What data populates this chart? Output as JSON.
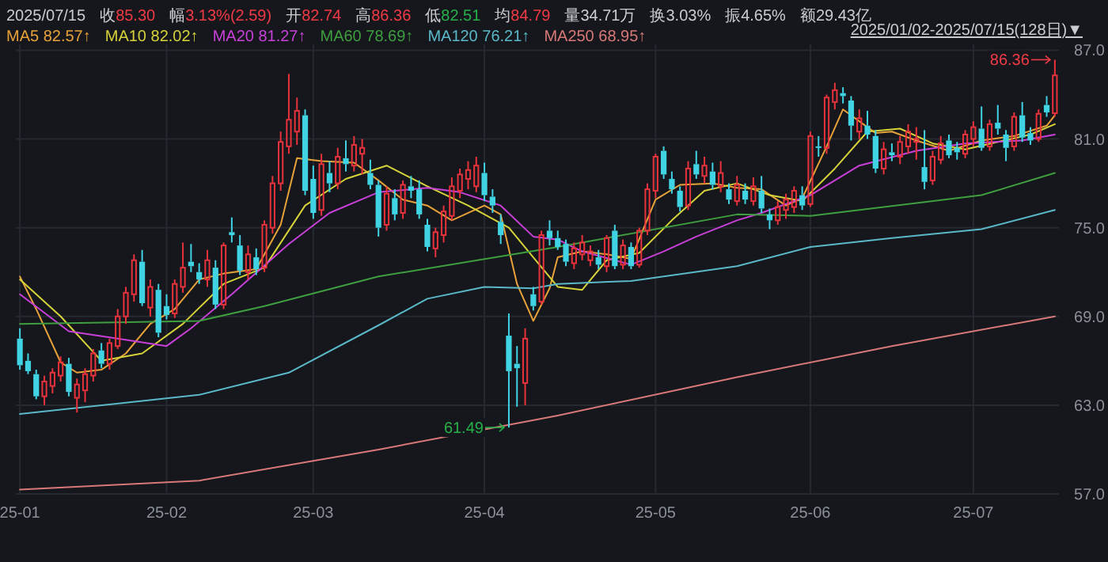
{
  "chart_data": {
    "type": "candlestick",
    "subtitle": "2025/01/02-2025/07/15(128日)▼",
    "categories": [
      "25-01",
      null,
      null,
      null,
      null,
      null,
      null,
      null,
      null,
      null,
      null,
      null,
      null,
      null,
      null,
      null,
      null,
      null,
      "25-02",
      null,
      null,
      null,
      null,
      null,
      null,
      null,
      null,
      null,
      null,
      null,
      null,
      null,
      null,
      null,
      null,
      null,
      "25-03",
      null,
      null,
      null,
      null,
      null,
      null,
      null,
      null,
      null,
      null,
      null,
      null,
      null,
      null,
      null,
      null,
      null,
      null,
      null,
      null,
      "25-04",
      null,
      null,
      null,
      null,
      null,
      null,
      null,
      null,
      null,
      null,
      null,
      null,
      null,
      null,
      null,
      null,
      null,
      null,
      null,
      null,
      "25-05",
      null,
      null,
      null,
      null,
      null,
      null,
      null,
      null,
      null,
      null,
      null,
      null,
      null,
      null,
      null,
      null,
      null,
      null,
      "25-06",
      null,
      null,
      null,
      null,
      null,
      null,
      null,
      null,
      null,
      null,
      null,
      null,
      null,
      null,
      null,
      null,
      null,
      null,
      null,
      "25-07",
      null,
      null,
      null,
      null,
      null,
      null,
      null,
      null,
      null,
      null
    ],
    "ohlc": [
      [
        67.5,
        68.2,
        65.4,
        65.7
      ],
      [
        66.0,
        66.5,
        65.1,
        65.3
      ],
      [
        65.1,
        65.4,
        63.4,
        63.6
      ],
      [
        63.6,
        65.0,
        63.0,
        64.6
      ],
      [
        64.3,
        65.5,
        63.8,
        65.2
      ],
      [
        65.0,
        66.3,
        64.6,
        65.9
      ],
      [
        65.8,
        66.2,
        63.6,
        63.9
      ],
      [
        63.5,
        64.8,
        62.5,
        64.4
      ],
      [
        64.0,
        65.5,
        63.2,
        65.1
      ],
      [
        65.0,
        66.8,
        64.6,
        66.5
      ],
      [
        66.7,
        67.2,
        65.5,
        65.8
      ],
      [
        65.8,
        67.5,
        65.4,
        67.2
      ],
      [
        67.0,
        69.5,
        66.8,
        69.0
      ],
      [
        69.0,
        71.0,
        68.5,
        70.6
      ],
      [
        70.5,
        73.2,
        70.0,
        72.8
      ],
      [
        72.7,
        73.5,
        69.7,
        69.9
      ],
      [
        69.6,
        71.5,
        69.0,
        71.0
      ],
      [
        70.8,
        71.2,
        67.6,
        67.9
      ],
      [
        69.7,
        70.5,
        68.8,
        69.1
      ],
      [
        69.2,
        71.5,
        68.9,
        71.2
      ],
      [
        71.0,
        74.0,
        70.6,
        72.3
      ],
      [
        72.7,
        73.9,
        72.0,
        72.4
      ],
      [
        72.0,
        72.6,
        71.2,
        71.5
      ],
      [
        71.5,
        73.5,
        71.0,
        72.8
      ],
      [
        72.3,
        72.8,
        69.5,
        69.8
      ],
      [
        69.8,
        74.0,
        69.5,
        73.8
      ],
      [
        74.7,
        75.7,
        74.0,
        74.5
      ],
      [
        73.8,
        74.5,
        71.8,
        72.1
      ],
      [
        72.0,
        73.8,
        71.5,
        73.2
      ],
      [
        73.0,
        73.6,
        71.8,
        72.2
      ],
      [
        72.3,
        75.5,
        72.0,
        75.2
      ],
      [
        75.0,
        78.5,
        74.6,
        78.0
      ],
      [
        78.0,
        81.5,
        77.5,
        80.8
      ],
      [
        80.5,
        85.4,
        80.0,
        82.3
      ],
      [
        81.5,
        83.8,
        80.6,
        82.9
      ],
      [
        82.6,
        83.0,
        77.2,
        77.5
      ],
      [
        78.3,
        79.2,
        75.6,
        76.0
      ],
      [
        76.2,
        80.0,
        75.8,
        79.3
      ],
      [
        78.7,
        79.5,
        77.4,
        78.0
      ],
      [
        78.0,
        80.4,
        77.6,
        79.8
      ],
      [
        79.7,
        80.9,
        78.8,
        79.3
      ],
      [
        79.2,
        81.2,
        78.8,
        80.6
      ],
      [
        80.0,
        81.0,
        78.6,
        80.4
      ],
      [
        78.7,
        79.6,
        77.6,
        77.9
      ],
      [
        77.9,
        78.2,
        74.4,
        75.0
      ],
      [
        75.2,
        77.8,
        74.8,
        77.3
      ],
      [
        77.0,
        77.6,
        75.5,
        75.9
      ],
      [
        76.0,
        78.2,
        75.6,
        77.9
      ],
      [
        77.8,
        78.5,
        77.0,
        77.5
      ],
      [
        77.6,
        78.2,
        75.6,
        75.9
      ],
      [
        75.2,
        75.6,
        73.4,
        73.7
      ],
      [
        73.6,
        75.0,
        73.0,
        74.7
      ],
      [
        74.5,
        76.5,
        74.0,
        76.1
      ],
      [
        75.8,
        78.4,
        75.5,
        77.8
      ],
      [
        77.5,
        79.0,
        77.0,
        78.6
      ],
      [
        78.3,
        79.5,
        77.6,
        78.9
      ],
      [
        77.8,
        79.8,
        77.4,
        79.2
      ],
      [
        78.7,
        79.4,
        76.8,
        77.2
      ],
      [
        77.1,
        77.6,
        76.0,
        76.5
      ],
      [
        75.4,
        75.9,
        73.9,
        74.5
      ],
      [
        67.7,
        69.2,
        61.49,
        65.3
      ],
      [
        65.8,
        67.0,
        62.9,
        65.5
      ],
      [
        64.5,
        68.2,
        63.0,
        67.5
      ],
      [
        70.5,
        71.0,
        69.4,
        69.7
      ],
      [
        70.0,
        74.8,
        69.8,
        74.5
      ],
      [
        74.8,
        75.5,
        73.8,
        74.3
      ],
      [
        74.3,
        74.8,
        73.5,
        73.7
      ],
      [
        73.9,
        74.2,
        72.4,
        72.7
      ],
      [
        72.6,
        74.0,
        72.2,
        73.6
      ],
      [
        73.2,
        74.5,
        72.8,
        74.0
      ],
      [
        72.8,
        73.8,
        72.4,
        73.4
      ],
      [
        73.0,
        73.5,
        72.2,
        72.5
      ],
      [
        72.4,
        74.5,
        72.0,
        74.3
      ],
      [
        74.8,
        75.2,
        72.2,
        72.4
      ],
      [
        72.5,
        74.2,
        72.2,
        73.8
      ],
      [
        73.7,
        74.0,
        72.2,
        72.4
      ],
      [
        72.5,
        75.0,
        72.3,
        74.8
      ],
      [
        74.8,
        78.0,
        74.5,
        77.6
      ],
      [
        77.5,
        80.0,
        77.0,
        79.8
      ],
      [
        80.2,
        80.5,
        78.3,
        78.6
      ],
      [
        78.3,
        78.8,
        77.3,
        77.6
      ],
      [
        77.5,
        77.8,
        76.1,
        76.4
      ],
      [
        76.5,
        79.5,
        76.2,
        79.0
      ],
      [
        79.3,
        80.2,
        78.3,
        78.6
      ],
      [
        78.5,
        79.8,
        78.0,
        79.2
      ],
      [
        78.8,
        79.4,
        77.6,
        77.9
      ],
      [
        77.8,
        79.5,
        77.4,
        78.7
      ],
      [
        77.6,
        78.0,
        76.6,
        76.9
      ],
      [
        76.8,
        78.5,
        76.5,
        77.9
      ],
      [
        77.5,
        78.0,
        76.6,
        76.9
      ],
      [
        76.8,
        78.4,
        76.5,
        77.8
      ],
      [
        77.5,
        78.5,
        76.0,
        76.3
      ],
      [
        75.9,
        76.3,
        74.9,
        75.5
      ],
      [
        75.5,
        76.8,
        75.2,
        76.4
      ],
      [
        76.2,
        77.3,
        75.6,
        76.9
      ],
      [
        76.4,
        77.8,
        76.0,
        77.5
      ],
      [
        77.2,
        77.8,
        76.2,
        76.5
      ],
      [
        76.6,
        81.5,
        76.4,
        81.2
      ],
      [
        80.5,
        81.2,
        79.8,
        80.4
      ],
      [
        80.4,
        84.0,
        80.0,
        83.8
      ],
      [
        83.5,
        84.8,
        83.0,
        84.3
      ],
      [
        84.1,
        84.5,
        83.4,
        83.9
      ],
      [
        83.6,
        83.9,
        80.9,
        81.9
      ],
      [
        81.5,
        83.0,
        81.0,
        82.4
      ],
      [
        81.9,
        82.9,
        81.0,
        81.3
      ],
      [
        81.2,
        81.6,
        78.7,
        79.0
      ],
      [
        79.0,
        80.8,
        78.6,
        80.3
      ],
      [
        80.1,
        80.7,
        79.5,
        79.9
      ],
      [
        79.8,
        81.2,
        79.3,
        80.8
      ],
      [
        80.5,
        82.0,
        80.0,
        81.5
      ],
      [
        80.8,
        81.8,
        79.6,
        81.0
      ],
      [
        79.1,
        81.6,
        77.6,
        78.1
      ],
      [
        78.2,
        80.2,
        77.9,
        79.8
      ],
      [
        79.6,
        81.2,
        79.3,
        80.7
      ],
      [
        80.9,
        81.3,
        79.7,
        79.9
      ],
      [
        80.4,
        80.8,
        79.6,
        80.1
      ],
      [
        80.0,
        81.6,
        79.7,
        81.3
      ],
      [
        81.0,
        82.2,
        80.5,
        81.8
      ],
      [
        81.7,
        83.2,
        80.2,
        80.4
      ],
      [
        80.5,
        82.3,
        80.2,
        82.0
      ],
      [
        82.1,
        83.3,
        81.3,
        81.7
      ],
      [
        81.3,
        81.6,
        79.5,
        80.4
      ],
      [
        80.5,
        82.8,
        80.2,
        82.5
      ],
      [
        82.6,
        83.5,
        80.8,
        81.1
      ],
      [
        81.4,
        81.8,
        80.6,
        80.9
      ],
      [
        81.0,
        83.0,
        80.8,
        82.7
      ],
      [
        83.3,
        83.9,
        82.5,
        82.8
      ],
      [
        82.74,
        86.36,
        82.51,
        85.3
      ]
    ],
    "series": [
      {
        "type": "line",
        "name": "MA5",
        "color": "#e8a23a",
        "values": [
          71.7,
          null,
          69.5,
          null,
          null,
          65.9,
          null,
          65.2,
          null,
          null,
          65.4,
          null,
          null,
          66.5,
          null,
          null,
          68.5,
          null,
          null,
          69.5,
          null,
          null,
          71.5,
          null,
          null,
          71.9,
          null,
          null,
          null,
          72.2,
          null,
          null,
          75.2,
          null,
          79.7,
          null,
          null,
          79.5,
          null,
          null,
          null,
          79.4,
          null,
          null,
          78.2,
          null,
          null,
          76.9,
          null,
          null,
          76.5,
          null,
          null,
          75.5,
          null,
          null,
          null,
          76.5,
          null,
          75.9,
          null,
          71.2,
          null,
          68.7,
          null,
          70.9,
          73.0,
          null,
          null,
          73.4,
          null,
          null,
          73.2,
          null,
          null,
          72.9,
          null,
          null,
          76.9,
          null,
          null,
          77.9,
          null,
          null,
          null,
          78.0,
          null,
          null,
          77.7,
          null,
          null,
          77.6,
          null,
          null,
          76.5,
          null,
          77.0,
          null,
          null,
          80.5,
          null,
          83.0,
          null,
          null,
          null,
          81.4,
          null,
          81.5,
          null,
          null,
          80.9,
          null,
          null,
          null,
          80.2,
          null,
          null,
          null,
          80.9,
          null,
          null,
          null,
          81.2,
          null,
          null,
          null,
          81.9,
          82.6
        ]
      },
      {
        "type": "line",
        "name": "MA10",
        "color": "#d6d23a",
        "values": [
          71.5,
          null,
          null,
          null,
          null,
          69.0,
          null,
          null,
          null,
          null,
          66.0,
          null,
          null,
          null,
          null,
          66.5,
          null,
          null,
          null,
          null,
          68.5,
          null,
          null,
          null,
          null,
          71.2,
          null,
          null,
          null,
          null,
          72.3,
          null,
          null,
          null,
          null,
          76.5,
          null,
          null,
          null,
          null,
          78.3,
          null,
          null,
          null,
          null,
          79.2,
          null,
          null,
          null,
          null,
          77.8,
          null,
          null,
          null,
          null,
          76.5,
          null,
          null,
          null,
          null,
          75.0,
          null,
          null,
          73.0,
          null,
          null,
          71.0,
          null,
          null,
          70.8,
          null,
          null,
          72.8,
          null,
          null,
          null,
          73.3,
          null,
          null,
          null,
          75.5,
          null,
          null,
          null,
          77.5,
          null,
          null,
          null,
          78.0,
          null,
          null,
          null,
          77.2,
          null,
          null,
          null,
          76.8,
          null,
          null,
          null,
          79.0,
          null,
          null,
          null,
          81.5,
          null,
          null,
          null,
          81.7,
          null,
          null,
          null,
          80.7,
          null,
          null,
          null,
          80.3,
          null,
          null,
          null,
          80.8,
          null,
          null,
          null,
          81.3,
          null,
          null,
          82.0
        ]
      },
      {
        "type": "line",
        "name": "MA20",
        "color": "#c840d8",
        "values": [
          70.5,
          null,
          null,
          null,
          null,
          null,
          68.0,
          null,
          null,
          null,
          null,
          null,
          67.5,
          null,
          null,
          null,
          null,
          null,
          67.0,
          null,
          null,
          68.2,
          null,
          null,
          null,
          null,
          70.5,
          null,
          null,
          null,
          null,
          null,
          null,
          73.9,
          null,
          null,
          null,
          null,
          76.0,
          null,
          null,
          null,
          null,
          null,
          77.4,
          null,
          null,
          null,
          null,
          null,
          77.7,
          null,
          null,
          null,
          77.4,
          null,
          null,
          null,
          null,
          76.5,
          null,
          null,
          null,
          74.4,
          null,
          null,
          74.2,
          null,
          null,
          73.4,
          null,
          null,
          null,
          null,
          null,
          72.5,
          null,
          null,
          null,
          73.4,
          null,
          null,
          null,
          74.4,
          null,
          null,
          null,
          null,
          75.5,
          null,
          null,
          76.0,
          null,
          null,
          null,
          null,
          null,
          77.2,
          null,
          null,
          null,
          null,
          null,
          79.2,
          null,
          null,
          null,
          null,
          null,
          null,
          80.2,
          null,
          null,
          null,
          null,
          null,
          80.7,
          null,
          null,
          null,
          null,
          null,
          null,
          80.9,
          null,
          null,
          null,
          81.3
        ]
      },
      {
        "type": "line",
        "name": "MA60",
        "color": "#3f9e3f",
        "values": [
          68.5,
          null,
          null,
          null,
          null,
          null,
          null,
          null,
          null,
          null,
          null,
          null,
          null,
          null,
          null,
          null,
          null,
          null,
          null,
          null,
          null,
          null,
          68.7,
          null,
          null,
          null,
          null,
          null,
          null,
          null,
          69.7,
          null,
          null,
          null,
          null,
          null,
          null,
          null,
          null,
          null,
          null,
          null,
          null,
          null,
          71.7,
          null,
          null,
          null,
          null,
          null,
          null,
          null,
          null,
          null,
          null,
          null,
          null,
          null,
          null,
          null,
          null,
          null,
          null,
          null,
          null,
          null,
          73.7,
          null,
          null,
          null,
          null,
          null,
          null,
          null,
          null,
          null,
          null,
          null,
          null,
          null,
          null,
          null,
          null,
          null,
          null,
          null,
          null,
          null,
          75.9,
          null,
          null,
          null,
          null,
          null,
          null,
          null,
          null,
          75.8,
          null,
          null,
          null,
          null,
          null,
          null,
          null,
          null,
          null,
          null,
          null,
          null,
          null,
          null,
          null,
          null,
          null,
          null,
          null,
          null,
          77.2,
          null,
          null,
          null,
          null,
          null,
          null,
          null,
          null,
          78.7
        ]
      },
      {
        "type": "line",
        "name": "MA120",
        "color": "#5ab8c8",
        "values": [
          62.4,
          null,
          null,
          null,
          null,
          null,
          null,
          null,
          null,
          null,
          null,
          null,
          null,
          null,
          null,
          null,
          null,
          null,
          null,
          null,
          null,
          null,
          63.7,
          null,
          null,
          null,
          null,
          null,
          null,
          null,
          null,
          null,
          null,
          65.2,
          null,
          null,
          null,
          null,
          null,
          null,
          null,
          null,
          null,
          null,
          68.4,
          null,
          null,
          null,
          null,
          null,
          70.2,
          null,
          null,
          null,
          null,
          null,
          null,
          71.0,
          null,
          null,
          null,
          null,
          null,
          70.9,
          null,
          null,
          71.2,
          null,
          null,
          null,
          null,
          null,
          null,
          null,
          null,
          71.4,
          null,
          null,
          null,
          null,
          null,
          null,
          null,
          null,
          null,
          null,
          null,
          null,
          72.4,
          null,
          null,
          null,
          null,
          null,
          null,
          null,
          null,
          73.7,
          null,
          null,
          null,
          null,
          null,
          null,
          null,
          null,
          null,
          74.3,
          null,
          null,
          null,
          null,
          null,
          null,
          null,
          null,
          null,
          null,
          74.9,
          null,
          null,
          null,
          null,
          null,
          null,
          null,
          null,
          76.2
        ]
      },
      {
        "type": "line",
        "name": "MA250",
        "color": "#d87878",
        "values": [
          57.3,
          null,
          null,
          null,
          null,
          null,
          null,
          null,
          null,
          null,
          null,
          null,
          null,
          null,
          null,
          null,
          null,
          null,
          null,
          null,
          null,
          null,
          57.9,
          null,
          null,
          null,
          null,
          null,
          null,
          null,
          null,
          null,
          null,
          null,
          null,
          null,
          null,
          null,
          null,
          null,
          null,
          null,
          null,
          null,
          60.0,
          null,
          null,
          null,
          null,
          null,
          null,
          null,
          null,
          null,
          null,
          null,
          null,
          null,
          null,
          null,
          null,
          null,
          null,
          null,
          null,
          null,
          62.3,
          null,
          null,
          null,
          null,
          null,
          null,
          null,
          null,
          null,
          null,
          null,
          null,
          null,
          null,
          null,
          null,
          null,
          null,
          null,
          null,
          null,
          64.9,
          null,
          null,
          null,
          null,
          null,
          null,
          null,
          null,
          null,
          null,
          null,
          null,
          null,
          null,
          null,
          null,
          null,
          null,
          67.0,
          null,
          null,
          null,
          null,
          null,
          null,
          null,
          null,
          null,
          null,
          null,
          null,
          null,
          null,
          null,
          null,
          null,
          null,
          null,
          69.0
        ]
      }
    ],
    "ylim": [
      57.0,
      87.4
    ],
    "yticks": [
      {
        "value": 57,
        "label": "57.0"
      },
      {
        "value": 63,
        "label": "63.0"
      },
      {
        "value": 69,
        "label": "69.0"
      },
      {
        "value": 75,
        "label": "75.0"
      },
      {
        "value": 81,
        "label": "81.0"
      },
      {
        "value": 87,
        "label": "87.0"
      }
    ],
    "grid": true,
    "legend": "top left",
    "annotations": [
      "2025/07/15",
      "收85.30",
      "幅3.13%(2.59)",
      "开82.74",
      "高86.36",
      "低82.51",
      "均84.79",
      "量34.71万",
      "换3.03%",
      "振4.65%",
      "额29.43亿",
      "82.57↑",
      "82.02↑",
      "81.27↑",
      "78.69↑",
      "76.21↑",
      "68.95↑",
      "61.49",
      "86.36"
    ]
  }
}
